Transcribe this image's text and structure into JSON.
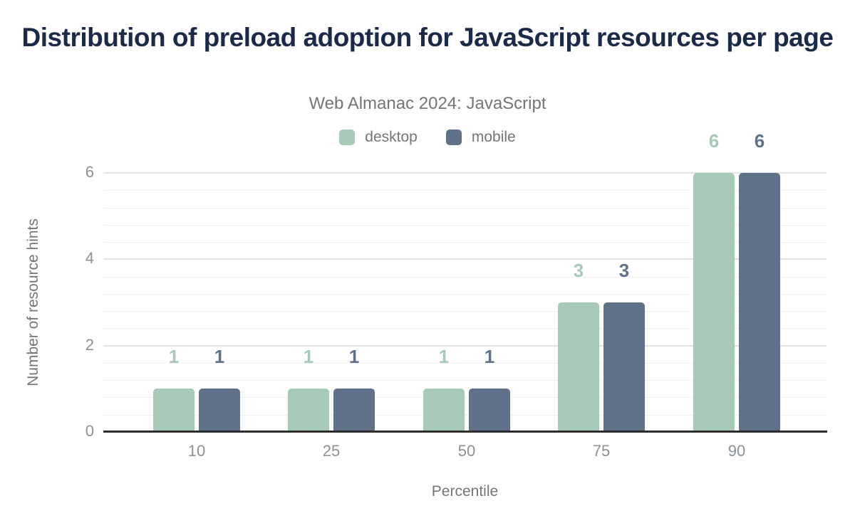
{
  "header": {
    "title": "Distribution of preload adoption for JavaScript resources per page",
    "subtitle": "Web Almanac 2024: JavaScript"
  },
  "colors": {
    "title": "#1b2a49",
    "subtitle": "#757575",
    "desktop": "#a6c9b8",
    "mobile": "#5f7289",
    "axis_line": "#2d2d2d",
    "grid_major": "#e2e2e2",
    "grid_minor": "#f2f2f2",
    "tick_label": "#8b9196",
    "axis_title": "#757575"
  },
  "chart_data": {
    "type": "bar",
    "title": "Distribution of preload adoption for JavaScript resources per page",
    "subtitle": "Web Almanac 2024: JavaScript",
    "categories": [
      "10",
      "25",
      "50",
      "75",
      "90"
    ],
    "series": [
      {
        "name": "desktop",
        "color": "#a6c9b8",
        "values": [
          1,
          1,
          1,
          3,
          6
        ]
      },
      {
        "name": "mobile",
        "color": "#5f7289",
        "values": [
          1,
          1,
          1,
          3,
          6
        ]
      }
    ],
    "data_labels": {
      "desktop": [
        "1",
        "1",
        "1",
        "3",
        "6"
      ],
      "mobile": [
        "1",
        "1",
        "1",
        "3",
        "6"
      ]
    },
    "xlabel": "Percentile",
    "ylabel": "Number of resource hints",
    "ylim": [
      0,
      6
    ],
    "yticks": [
      "0",
      "2",
      "4",
      "6"
    ],
    "minor_grid_step": 0.4,
    "grid": "on",
    "legend_position": "top",
    "legend": [
      "desktop",
      "mobile"
    ]
  }
}
